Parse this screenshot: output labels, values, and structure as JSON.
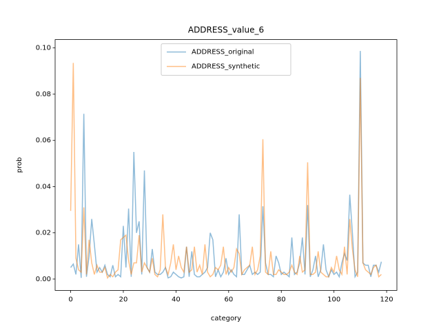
{
  "chart_data": {
    "type": "line",
    "title": "ADDRESS_value_6",
    "xlabel": "category",
    "ylabel": "prob",
    "x": [
      0,
      1,
      2,
      3,
      4,
      5,
      6,
      7,
      8,
      9,
      10,
      11,
      12,
      13,
      14,
      15,
      16,
      17,
      18,
      19,
      20,
      21,
      22,
      23,
      24,
      25,
      26,
      27,
      28,
      29,
      30,
      31,
      32,
      33,
      34,
      35,
      36,
      37,
      38,
      39,
      40,
      41,
      42,
      43,
      44,
      45,
      46,
      47,
      48,
      49,
      50,
      51,
      52,
      53,
      54,
      55,
      56,
      57,
      58,
      59,
      60,
      61,
      62,
      63,
      64,
      65,
      66,
      67,
      68,
      69,
      70,
      71,
      72,
      73,
      74,
      75,
      76,
      77,
      78,
      79,
      80,
      81,
      82,
      83,
      84,
      85,
      86,
      87,
      88,
      89,
      90,
      91,
      92,
      93,
      94,
      95,
      96,
      97,
      98,
      99,
      100,
      101,
      102,
      103,
      104,
      105,
      106,
      107,
      108,
      109,
      110,
      111,
      112,
      113,
      114,
      115,
      116,
      117,
      118
    ],
    "series": [
      {
        "name": "ADDRESS_original",
        "color": "#1f77b4",
        "values": [
          0.005,
          0.0065,
          0.002,
          0.015,
          0.0005,
          0.0715,
          0.001,
          0.01,
          0.026,
          0.015,
          0.003,
          0.005,
          0.003,
          0.006,
          0.002,
          0.001,
          0.006,
          0.001,
          0.002,
          0.001,
          0.023,
          0.005,
          0.0305,
          0.001,
          0.055,
          0.02,
          0.025,
          0.002,
          0.047,
          0.005,
          0.003,
          0.013,
          0.003,
          0.002,
          0.002,
          0.003,
          0.005,
          0.0005,
          0.001,
          0.003,
          0.002,
          0.001,
          0.0005,
          0.001,
          0.014,
          0.001,
          0.012,
          0.002,
          0.001,
          0.001,
          0.002,
          0.003,
          0.005,
          0.02,
          0.017,
          0.001,
          0.004,
          0.001,
          0.003,
          0.009,
          0.002,
          0.004,
          0.002,
          0.001,
          0.028,
          0.002,
          0.002,
          0.004,
          0.006,
          0.002,
          0.003,
          0.002,
          0.003,
          0.0315,
          0.007,
          0.002,
          0.002,
          0.001,
          0.01,
          0.007,
          0.002,
          0.003,
          0.002,
          0.001,
          0.018,
          0.002,
          0.003,
          0.007,
          0.018,
          0.002,
          0.032,
          0.001,
          0.004,
          0.01,
          0.001,
          0.004,
          0.015,
          0.004,
          0.001,
          0.004,
          0.002,
          0.003,
          0.001,
          0.007,
          0.011,
          0.008,
          0.0365,
          0.02,
          0.001,
          0.003,
          0.0987,
          0.007,
          0.006,
          0.006,
          0.001,
          0.006,
          0.006,
          0.003,
          0.0075
        ]
      },
      {
        "name": "ADDRESS_synthetic",
        "color": "#ff7f0e",
        "values": [
          0.0295,
          0.0935,
          0.009,
          0.004,
          0.003,
          0.031,
          0.002,
          0.017,
          0.007,
          0.002,
          0.006,
          0.003,
          0.003,
          0.005,
          0.0005,
          0.002,
          0.001,
          0.003,
          0.004,
          0.017,
          0.018,
          0.019,
          0.008,
          0.002,
          0.007,
          0.007,
          0.019,
          0.003,
          0.007,
          0.005,
          0.003,
          0.009,
          0.002,
          0.001,
          0.004,
          0.028,
          0.005,
          0.002,
          0.007,
          0.015,
          0.004,
          0.01,
          0.005,
          0.003,
          0.014,
          0.003,
          0.004,
          0.014,
          0.003,
          0.006,
          0.002,
          0.015,
          0.003,
          0.001,
          0.002,
          0.005,
          0.004,
          0.006,
          0.014,
          0.002,
          0.005,
          0.003,
          0.005,
          0.013,
          0.011,
          0.002,
          0.004,
          0.005,
          0.006,
          0.014,
          0.002,
          0.004,
          0.01,
          0.0605,
          0.003,
          0.002,
          0.012,
          0.002,
          0.002,
          0.004,
          0.003,
          0.002,
          0.002,
          0.003,
          0.006,
          0.003,
          0.002,
          0.01,
          0.003,
          0.004,
          0.0505,
          0.002,
          0.002,
          0.003,
          0.012,
          0.003,
          0.002,
          0.001,
          0.001,
          0.005,
          0.003,
          0.01,
          0.004,
          0.002,
          0.014,
          0.002,
          0.026,
          0.013,
          0.004,
          0.001,
          0.087,
          0.007,
          0.004,
          0.003,
          0.002,
          0.005,
          0.006,
          0.001,
          0.002
        ]
      }
    ],
    "xlim": [
      -5.9,
      123.9
    ],
    "ylim": [
      -0.0049,
      0.1036
    ],
    "xticks": [
      0,
      20,
      40,
      60,
      80,
      100,
      120
    ],
    "yticks": [
      {
        "value": 0,
        "label": "0.00"
      },
      {
        "value": 0.02,
        "label": "0.02"
      },
      {
        "value": 0.04,
        "label": "0.04"
      },
      {
        "value": 0.06,
        "label": "0.06"
      },
      {
        "value": 0.08,
        "label": "0.08"
      },
      {
        "value": 0.1,
        "label": "0.10"
      }
    ],
    "legend": "upper center",
    "alpha": 0.5
  }
}
